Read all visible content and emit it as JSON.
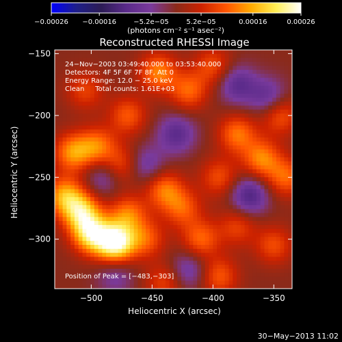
{
  "chart_data": {
    "type": "heatmap",
    "title": "Reconstructed RHESSI Image",
    "xlabel": "Heliocentric X (arcsec)",
    "ylabel": "Heliocentric Y (arcsec)",
    "xlim": [
      -530,
      -335
    ],
    "ylim": [
      -340,
      -147
    ],
    "x_ticks": [
      -500,
      -450,
      -400,
      -350
    ],
    "x_tick_labels": [
      "−500",
      "−450",
      "−400",
      "−350"
    ],
    "y_ticks": [
      -150,
      -200,
      -250,
      -300
    ],
    "y_tick_labels": [
      "−150",
      "−200",
      "−250",
      "−300"
    ],
    "colorbar": {
      "min": -0.00026,
      "max": 0.00026,
      "ticks": [
        -0.00026,
        -0.00016,
        -5.2e-05,
        5.2e-05,
        0.00016,
        0.00026
      ],
      "tick_labels": [
        "−0.00026",
        "−0.00016",
        "−5.2e−05",
        "5.2e−05",
        "0.00016",
        "0.00026"
      ],
      "unit_label": "(photons cm⁻² s⁻¹ asec⁻²)",
      "colormap": [
        "#0000ff",
        "#1e1e8a",
        "#2c1c55",
        "#5a2a8a",
        "#7a3a9c",
        "#8a2a1a",
        "#cc2200",
        "#ff5500",
        "#ffaa00",
        "#ffee55",
        "#ffffff"
      ]
    },
    "annotations": [
      "24−Nov−2003 03:49:40.000 to 03:53:40.000",
      "Detectors: 4F 5F 6F 7F 8F, Att 0",
      "Energy Range: 12.0 − 25.0 keV",
      "Clean     Total counts: 1.61E+03"
    ],
    "peak_label": "Position of Peak = [−483,−303]",
    "peak_position": [
      -483,
      -303
    ],
    "sources": [
      {
        "x": -480,
        "y": -303,
        "value": 0.00026
      },
      {
        "x": -500,
        "y": -296,
        "value": 0.0002
      },
      {
        "x": -508,
        "y": -278,
        "value": 0.00018
      },
      {
        "x": -522,
        "y": -265,
        "value": 0.00015
      },
      {
        "x": -470,
        "y": -280,
        "value": 0.00012
      },
      {
        "x": -455,
        "y": -300,
        "value": 0.0001
      },
      {
        "x": -440,
        "y": -260,
        "value": 0.00012
      },
      {
        "x": -425,
        "y": -275,
        "value": 0.0001
      },
      {
        "x": -515,
        "y": -230,
        "value": 0.00014
      },
      {
        "x": -495,
        "y": -225,
        "value": 0.00012
      },
      {
        "x": -475,
        "y": -240,
        "value": 9e-05
      },
      {
        "x": -470,
        "y": -200,
        "value": 0.0001
      },
      {
        "x": -445,
        "y": -165,
        "value": 0.00013
      },
      {
        "x": -420,
        "y": -180,
        "value": 0.00011
      },
      {
        "x": -400,
        "y": -160,
        "value": 9e-05
      },
      {
        "x": -380,
        "y": -215,
        "value": 0.00012
      },
      {
        "x": -360,
        "y": -235,
        "value": 0.00013
      },
      {
        "x": -345,
        "y": -200,
        "value": 0.0001
      },
      {
        "x": -340,
        "y": -250,
        "value": 0.00011
      },
      {
        "x": -395,
        "y": -250,
        "value": 9e-05
      },
      {
        "x": -410,
        "y": -300,
        "value": 0.00011
      },
      {
        "x": -380,
        "y": -290,
        "value": 8e-05
      },
      {
        "x": -350,
        "y": -305,
        "value": 9e-05
      },
      {
        "x": -395,
        "y": -330,
        "value": 0.0001
      },
      {
        "x": -440,
        "y": -335,
        "value": 8e-05
      },
      {
        "x": -505,
        "y": -180,
        "value": 8e-05
      },
      {
        "x": -430,
        "y": -215,
        "value": -0.0001
      },
      {
        "x": -380,
        "y": -175,
        "value": -0.0001
      },
      {
        "x": -355,
        "y": -185,
        "value": -9e-05
      },
      {
        "x": -370,
        "y": -265,
        "value": -0.00012
      },
      {
        "x": -455,
        "y": -240,
        "value": -8e-05
      },
      {
        "x": -490,
        "y": -250,
        "value": -7e-05
      },
      {
        "x": -420,
        "y": -325,
        "value": -8e-05
      },
      {
        "x": -480,
        "y": -330,
        "value": -6e-05
      }
    ]
  },
  "footer": {
    "date": "30−May−2013 11:02"
  }
}
